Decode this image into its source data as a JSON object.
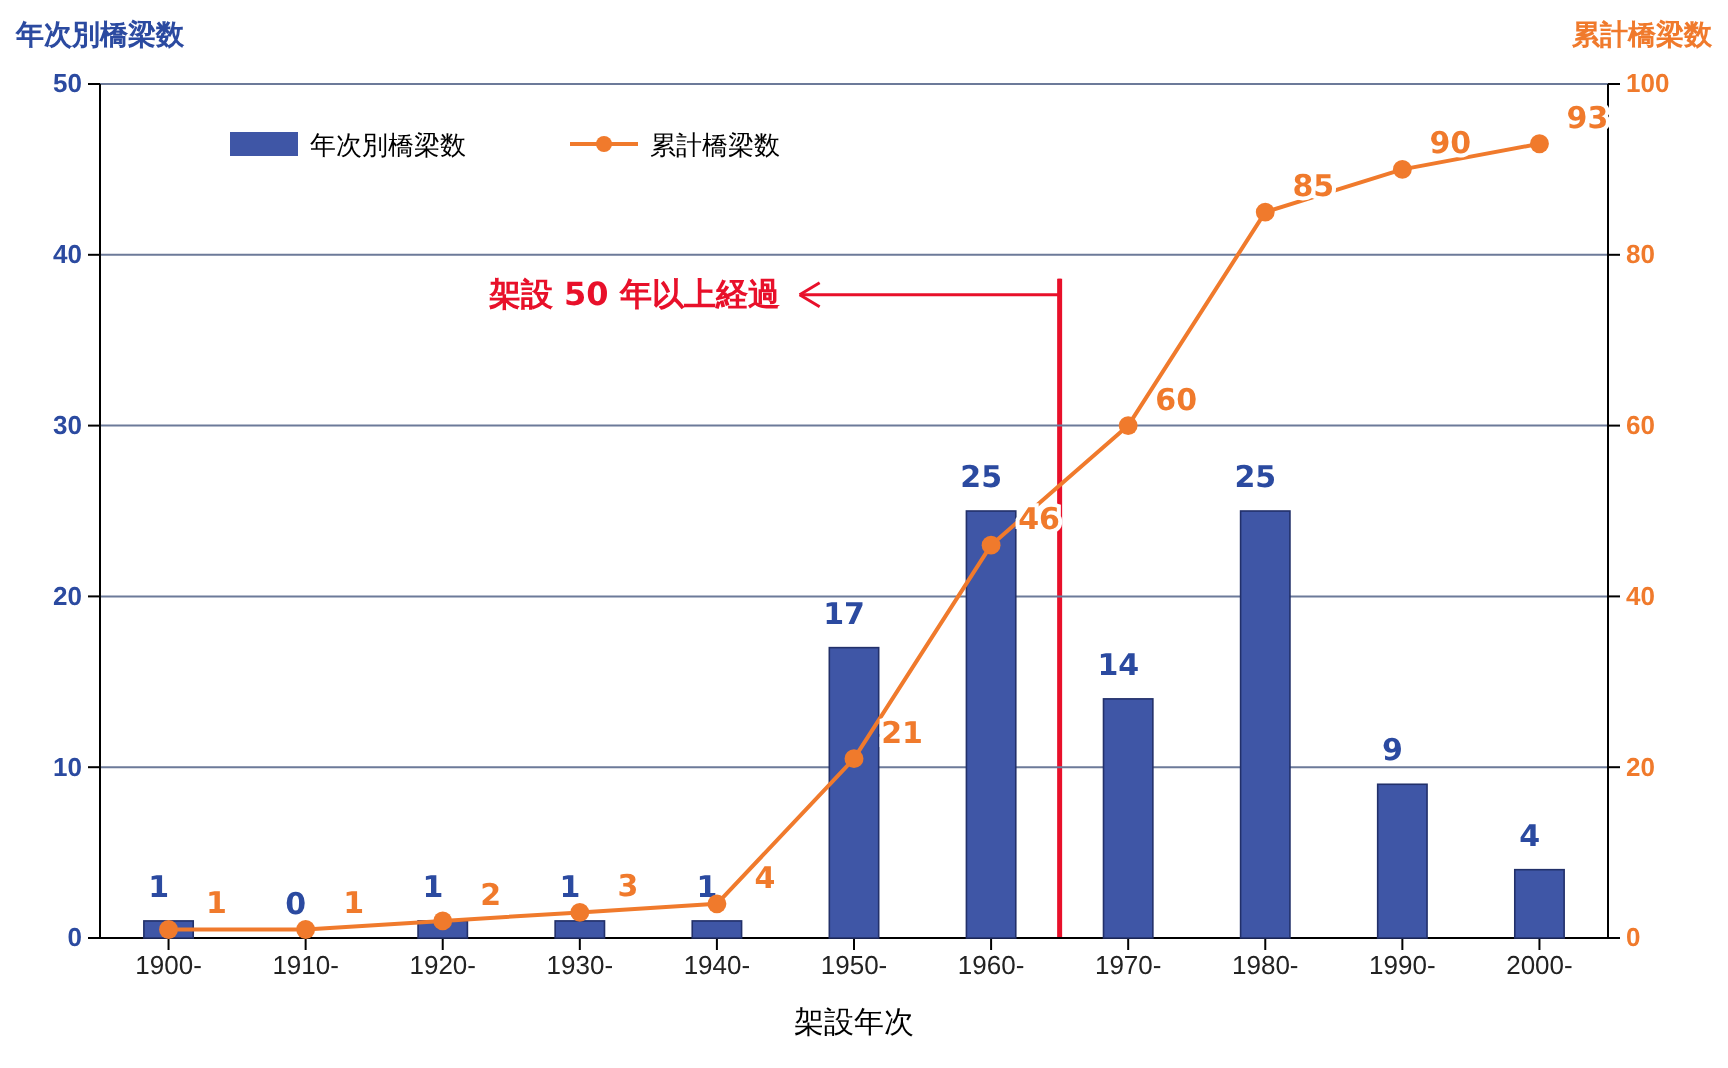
{
  "chart_data": {
    "type": "bar",
    "xlabel": "架設年次",
    "ylabel": "年次別橋梁数",
    "y2label": "累計橋梁数",
    "x": [
      1900,
      1910,
      1920,
      1930,
      1940,
      1950,
      1960,
      1970,
      1980,
      1990,
      2000
    ],
    "xlim": [
      1895,
      2005
    ],
    "xticks": [
      {
        "value": 1900,
        "label": "1900-"
      },
      {
        "value": 1910,
        "label": "1910-"
      },
      {
        "value": 1920,
        "label": "1920-"
      },
      {
        "value": 1930,
        "label": "1930-"
      },
      {
        "value": 1940,
        "label": "1940-"
      },
      {
        "value": 1950,
        "label": "1950-"
      },
      {
        "value": 1960,
        "label": "1960-"
      },
      {
        "value": 1970,
        "label": "1970-"
      },
      {
        "value": 1980,
        "label": "1980-"
      },
      {
        "value": 1990,
        "label": "1990-"
      },
      {
        "value": 2000,
        "label": "2000-"
      }
    ],
    "ylim": [
      0,
      50
    ],
    "yticks": [
      0,
      10,
      20,
      30,
      40,
      50
    ],
    "y2lim": [
      0,
      100
    ],
    "y2ticks": [
      0,
      20,
      40,
      60,
      80,
      100
    ],
    "series": [
      {
        "name": "年次別橋梁数",
        "color": "#3f56a6",
        "values": [
          1,
          0,
          1,
          1,
          1,
          17,
          25,
          14,
          25,
          9,
          4
        ]
      },
      {
        "name": "累計橋梁数",
        "type": "line",
        "axis": "y2",
        "color": "#f07a2c",
        "values": [
          1,
          1,
          2,
          3,
          4,
          21,
          46,
          60,
          85,
          90,
          93
        ]
      }
    ],
    "marker": "circle",
    "data_labels": true,
    "grid": "y",
    "legend": "top left",
    "ref_lines": [
      {
        "axis": "x",
        "value": 1965,
        "label": "架設 50 年以上経過",
        "color": "#e8102a"
      }
    ]
  }
}
